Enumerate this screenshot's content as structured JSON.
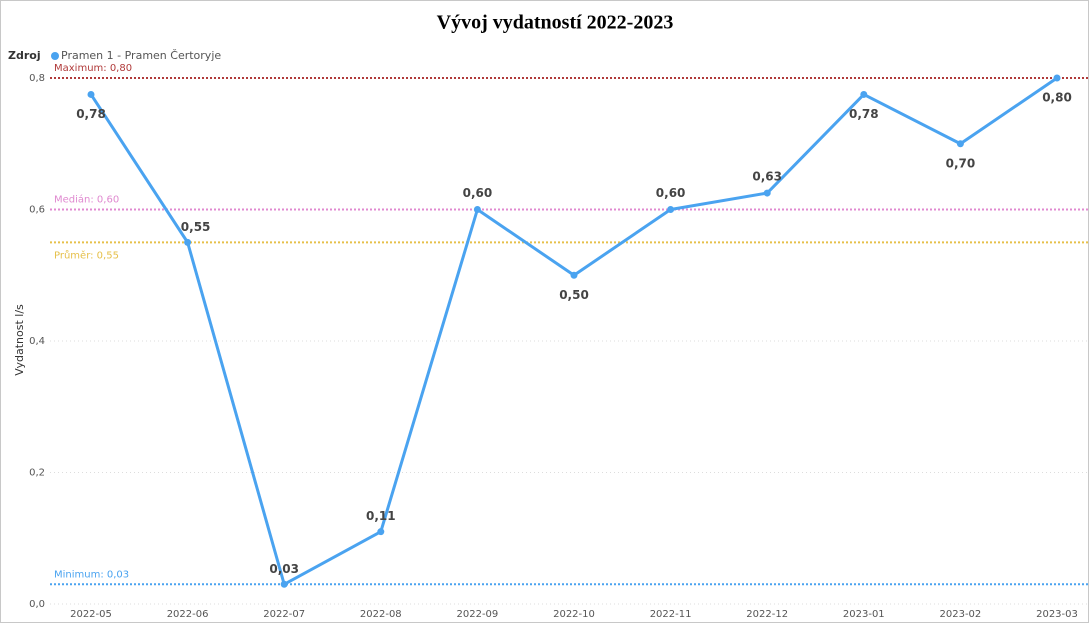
{
  "chart_data": {
    "type": "line",
    "title": "Vývoj vydatností 2022-2023",
    "legend_title": "Zdroj",
    "ylabel": "Vydatnost l/s",
    "categories": [
      "2022-05",
      "2022-06",
      "2022-07",
      "2022-08",
      "2022-09",
      "2022-10",
      "2022-11",
      "2022-12",
      "2023-01",
      "2023-02",
      "2023-03"
    ],
    "series": [
      {
        "name": "Pramen 1 - Pramen Čertoryje",
        "color": "#4aa3f0",
        "values": [
          0.775,
          0.55,
          0.03,
          0.11,
          0.6,
          0.5,
          0.6,
          0.625,
          0.775,
          0.7,
          0.8
        ],
        "value_labels": [
          "0,78",
          "0,55",
          "0,03",
          "0,11",
          "0,60",
          "0,50",
          "0,60",
          "0,63",
          "0,78",
          "0,70",
          "0,80"
        ]
      }
    ],
    "ylim": [
      0,
      0.8
    ],
    "yticks": [
      {
        "value": 0,
        "label": "0,0"
      },
      {
        "value": 0.2,
        "label": "0,2"
      },
      {
        "value": 0.4,
        "label": "0,4"
      },
      {
        "value": 0.6,
        "label": "0,6"
      },
      {
        "value": 0.8,
        "label": "0,8"
      }
    ],
    "grid": true,
    "reference_lines": [
      {
        "label": "Maximum: 0,80",
        "value": 0.8,
        "color": "#b03a3a"
      },
      {
        "label": "Medián: 0,60",
        "value": 0.6,
        "color": "#e08ad0"
      },
      {
        "label": "Průměr: 0,55",
        "value": 0.55,
        "color": "#e6c04a"
      },
      {
        "label": "Minimum: 0,03",
        "value": 0.03,
        "color": "#4aa3f0"
      }
    ]
  }
}
